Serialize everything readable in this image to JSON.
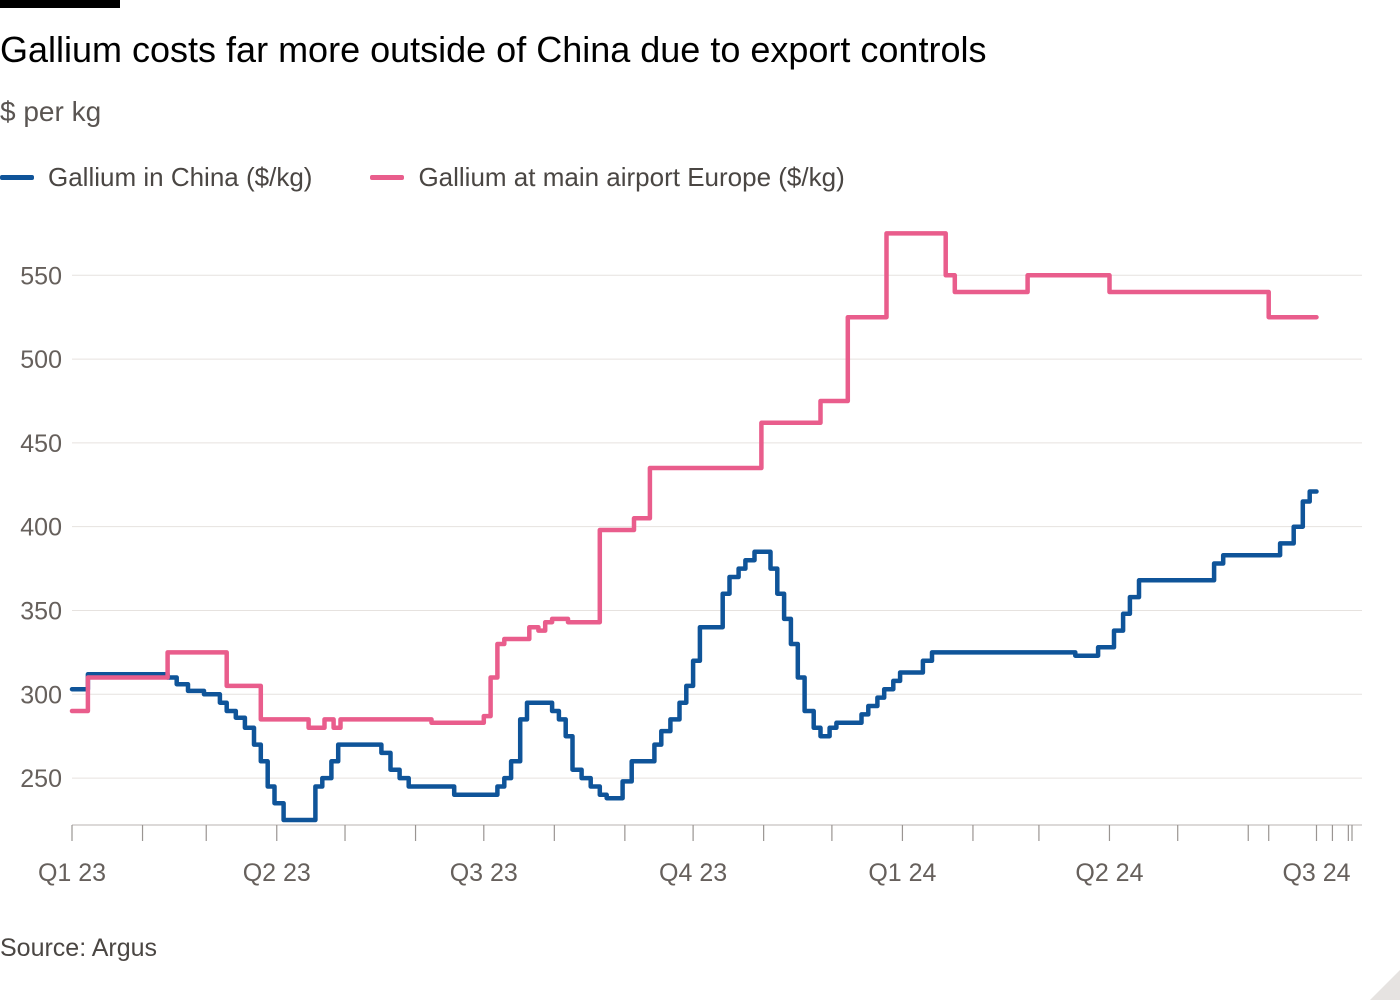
{
  "chart_data": {
    "type": "line",
    "title": "Gallium costs far more outside of China due to export controls",
    "subtitle": "$ per kg",
    "source": "Source: Argus",
    "ylim": [
      222,
      580
    ],
    "xlim": [
      "2023-01-01",
      "2024-07-21"
    ],
    "y_ticks": [
      250,
      300,
      350,
      400,
      450,
      500,
      550
    ],
    "x_tick_labels": [
      {
        "label": "Q1 23",
        "date": "2023-01-01"
      },
      {
        "label": "Q2 23",
        "date": "2023-04-01"
      },
      {
        "label": "Q3 23",
        "date": "2023-07-01"
      },
      {
        "label": "Q4 23",
        "date": "2023-10-01"
      },
      {
        "label": "Q1 24",
        "date": "2024-01-01"
      },
      {
        "label": "Q2 24",
        "date": "2024-04-01"
      },
      {
        "label": "Q3 24",
        "date": "2024-07-01"
      }
    ],
    "month_ticks": [
      "2023-01-01",
      "2023-02-01",
      "2023-03-01",
      "2023-04-01",
      "2023-05-01",
      "2023-06-01",
      "2023-07-01",
      "2023-08-01",
      "2023-09-01",
      "2023-10-01",
      "2023-11-01",
      "2023-12-01",
      "2024-01-01",
      "2024-02-01",
      "2024-03-01",
      "2024-04-01",
      "2024-05-01",
      "2024-06-01",
      "2024-07-01"
    ],
    "week_ticks": [
      "2024-06-10",
      "2024-07-08",
      "2024-07-15"
    ],
    "grid": true,
    "legend_position": "top-left",
    "series": [
      {
        "name": "Gallium in China ($/kg)",
        "color": "#0f5499",
        "points": [
          [
            "2023-01-01",
            303
          ],
          [
            "2023-01-08",
            303
          ],
          [
            "2023-01-08",
            312
          ],
          [
            "2023-02-12",
            312
          ],
          [
            "2023-02-12",
            310
          ],
          [
            "2023-02-16",
            310
          ],
          [
            "2023-02-16",
            306
          ],
          [
            "2023-02-21",
            306
          ],
          [
            "2023-02-21",
            302
          ],
          [
            "2023-02-28",
            302
          ],
          [
            "2023-02-28",
            300
          ],
          [
            "2023-03-07",
            300
          ],
          [
            "2023-03-07",
            295
          ],
          [
            "2023-03-10",
            295
          ],
          [
            "2023-03-10",
            290
          ],
          [
            "2023-03-14",
            290
          ],
          [
            "2023-03-14",
            286
          ],
          [
            "2023-03-18",
            286
          ],
          [
            "2023-03-18",
            280
          ],
          [
            "2023-03-22",
            280
          ],
          [
            "2023-03-22",
            270
          ],
          [
            "2023-03-25",
            270
          ],
          [
            "2023-03-25",
            260
          ],
          [
            "2023-03-28",
            260
          ],
          [
            "2023-03-28",
            245
          ],
          [
            "2023-03-31",
            245
          ],
          [
            "2023-03-31",
            235
          ],
          [
            "2023-04-04",
            235
          ],
          [
            "2023-04-04",
            225
          ],
          [
            "2023-04-18",
            225
          ],
          [
            "2023-04-18",
            245
          ],
          [
            "2023-04-21",
            245
          ],
          [
            "2023-04-21",
            250
          ],
          [
            "2023-04-25",
            250
          ],
          [
            "2023-04-25",
            260
          ],
          [
            "2023-04-28",
            260
          ],
          [
            "2023-04-28",
            270
          ],
          [
            "2023-05-17",
            270
          ],
          [
            "2023-05-17",
            265
          ],
          [
            "2023-05-21",
            265
          ],
          [
            "2023-05-21",
            255
          ],
          [
            "2023-05-25",
            255
          ],
          [
            "2023-05-25",
            250
          ],
          [
            "2023-05-29",
            250
          ],
          [
            "2023-05-29",
            245
          ],
          [
            "2023-06-18",
            245
          ],
          [
            "2023-06-18",
            240
          ],
          [
            "2023-07-07",
            240
          ],
          [
            "2023-07-07",
            245
          ],
          [
            "2023-07-10",
            245
          ],
          [
            "2023-07-10",
            250
          ],
          [
            "2023-07-13",
            250
          ],
          [
            "2023-07-13",
            260
          ],
          [
            "2023-07-17",
            260
          ],
          [
            "2023-07-17",
            285
          ],
          [
            "2023-07-20",
            285
          ],
          [
            "2023-07-20",
            295
          ],
          [
            "2023-07-31",
            295
          ],
          [
            "2023-07-31",
            290
          ],
          [
            "2023-08-03",
            290
          ],
          [
            "2023-08-03",
            285
          ],
          [
            "2023-08-06",
            285
          ],
          [
            "2023-08-06",
            275
          ],
          [
            "2023-08-09",
            275
          ],
          [
            "2023-08-09",
            255
          ],
          [
            "2023-08-13",
            255
          ],
          [
            "2023-08-13",
            250
          ],
          [
            "2023-08-17",
            250
          ],
          [
            "2023-08-17",
            245
          ],
          [
            "2023-08-21",
            245
          ],
          [
            "2023-08-21",
            240
          ],
          [
            "2023-08-24",
            240
          ],
          [
            "2023-08-24",
            238
          ],
          [
            "2023-08-31",
            238
          ],
          [
            "2023-08-31",
            248
          ],
          [
            "2023-09-04",
            248
          ],
          [
            "2023-09-04",
            260
          ],
          [
            "2023-09-14",
            260
          ],
          [
            "2023-09-14",
            270
          ],
          [
            "2023-09-17",
            270
          ],
          [
            "2023-09-17",
            278
          ],
          [
            "2023-09-21",
            278
          ],
          [
            "2023-09-21",
            285
          ],
          [
            "2023-09-25",
            285
          ],
          [
            "2023-09-25",
            295
          ],
          [
            "2023-09-28",
            295
          ],
          [
            "2023-09-28",
            305
          ],
          [
            "2023-10-01",
            305
          ],
          [
            "2023-10-01",
            320
          ],
          [
            "2023-10-04",
            320
          ],
          [
            "2023-10-04",
            340
          ],
          [
            "2023-10-14",
            340
          ],
          [
            "2023-10-14",
            360
          ],
          [
            "2023-10-17",
            360
          ],
          [
            "2023-10-17",
            370
          ],
          [
            "2023-10-21",
            370
          ],
          [
            "2023-10-21",
            375
          ],
          [
            "2023-10-24",
            375
          ],
          [
            "2023-10-24",
            380
          ],
          [
            "2023-10-28",
            380
          ],
          [
            "2023-10-28",
            385
          ],
          [
            "2023-11-04",
            385
          ],
          [
            "2023-11-04",
            375
          ],
          [
            "2023-11-07",
            375
          ],
          [
            "2023-11-07",
            360
          ],
          [
            "2023-11-10",
            360
          ],
          [
            "2023-11-10",
            345
          ],
          [
            "2023-11-13",
            345
          ],
          [
            "2023-11-13",
            330
          ],
          [
            "2023-11-16",
            330
          ],
          [
            "2023-11-16",
            310
          ],
          [
            "2023-11-19",
            310
          ],
          [
            "2023-11-19",
            290
          ],
          [
            "2023-11-23",
            290
          ],
          [
            "2023-11-23",
            280
          ],
          [
            "2023-11-26",
            280
          ],
          [
            "2023-11-26",
            275
          ],
          [
            "2023-11-30",
            275
          ],
          [
            "2023-11-30",
            280
          ],
          [
            "2023-12-03",
            280
          ],
          [
            "2023-12-03",
            283
          ],
          [
            "2023-12-14",
            283
          ],
          [
            "2023-12-14",
            288
          ],
          [
            "2023-12-17",
            288
          ],
          [
            "2023-12-17",
            293
          ],
          [
            "2023-12-21",
            293
          ],
          [
            "2023-12-21",
            298
          ],
          [
            "2023-12-24",
            298
          ],
          [
            "2023-12-24",
            303
          ],
          [
            "2023-12-28",
            303
          ],
          [
            "2023-12-28",
            308
          ],
          [
            "2023-12-31",
            308
          ],
          [
            "2023-12-31",
            313
          ],
          [
            "2024-01-10",
            313
          ],
          [
            "2024-01-10",
            320
          ],
          [
            "2024-01-14",
            320
          ],
          [
            "2024-01-14",
            325
          ],
          [
            "2024-03-17",
            325
          ],
          [
            "2024-03-17",
            323
          ],
          [
            "2024-03-27",
            323
          ],
          [
            "2024-03-27",
            328
          ],
          [
            "2024-04-03",
            328
          ],
          [
            "2024-04-03",
            338
          ],
          [
            "2024-04-07",
            338
          ],
          [
            "2024-04-07",
            348
          ],
          [
            "2024-04-10",
            348
          ],
          [
            "2024-04-10",
            358
          ],
          [
            "2024-04-14",
            358
          ],
          [
            "2024-04-14",
            368
          ],
          [
            "2024-05-17",
            368
          ],
          [
            "2024-05-17",
            378
          ],
          [
            "2024-05-21",
            378
          ],
          [
            "2024-05-21",
            383
          ],
          [
            "2024-06-15",
            383
          ],
          [
            "2024-06-15",
            390
          ],
          [
            "2024-06-21",
            390
          ],
          [
            "2024-06-21",
            400
          ],
          [
            "2024-06-25",
            400
          ],
          [
            "2024-06-25",
            415
          ],
          [
            "2024-06-28",
            415
          ],
          [
            "2024-06-28",
            421
          ],
          [
            "2024-07-01",
            421
          ]
        ]
      },
      {
        "name": "Gallium at main airport Europe ($/kg)",
        "color": "#e95d8c",
        "points": [
          [
            "2023-01-01",
            290
          ],
          [
            "2023-01-08",
            290
          ],
          [
            "2023-01-08",
            310
          ],
          [
            "2023-02-12",
            310
          ],
          [
            "2023-02-12",
            325
          ],
          [
            "2023-03-10",
            325
          ],
          [
            "2023-03-10",
            305
          ],
          [
            "2023-03-25",
            305
          ],
          [
            "2023-03-25",
            285
          ],
          [
            "2023-04-15",
            285
          ],
          [
            "2023-04-15",
            280
          ],
          [
            "2023-04-22",
            280
          ],
          [
            "2023-04-22",
            285
          ],
          [
            "2023-04-26",
            285
          ],
          [
            "2023-04-26",
            280
          ],
          [
            "2023-04-29",
            280
          ],
          [
            "2023-04-29",
            285
          ],
          [
            "2023-06-08",
            285
          ],
          [
            "2023-06-08",
            283
          ],
          [
            "2023-07-01",
            283
          ],
          [
            "2023-07-01",
            287
          ],
          [
            "2023-07-04",
            287
          ],
          [
            "2023-07-04",
            310
          ],
          [
            "2023-07-07",
            310
          ],
          [
            "2023-07-07",
            330
          ],
          [
            "2023-07-10",
            330
          ],
          [
            "2023-07-10",
            333
          ],
          [
            "2023-07-21",
            333
          ],
          [
            "2023-07-21",
            340
          ],
          [
            "2023-07-25",
            340
          ],
          [
            "2023-07-25",
            338
          ],
          [
            "2023-07-28",
            338
          ],
          [
            "2023-07-28",
            343
          ],
          [
            "2023-07-31",
            343
          ],
          [
            "2023-07-31",
            345
          ],
          [
            "2023-08-07",
            345
          ],
          [
            "2023-08-07",
            343
          ],
          [
            "2023-08-21",
            343
          ],
          [
            "2023-08-21",
            398
          ],
          [
            "2023-09-05",
            398
          ],
          [
            "2023-09-05",
            405
          ],
          [
            "2023-09-12",
            405
          ],
          [
            "2023-09-12",
            435
          ],
          [
            "2023-10-31",
            435
          ],
          [
            "2023-10-31",
            462
          ],
          [
            "2023-11-26",
            462
          ],
          [
            "2023-11-26",
            475
          ],
          [
            "2023-12-08",
            475
          ],
          [
            "2023-12-08",
            525
          ],
          [
            "2023-12-25",
            525
          ],
          [
            "2023-12-25",
            575
          ],
          [
            "2024-01-20",
            575
          ],
          [
            "2024-01-20",
            550
          ],
          [
            "2024-01-24",
            550
          ],
          [
            "2024-01-24",
            540
          ],
          [
            "2024-02-25",
            540
          ],
          [
            "2024-02-25",
            550
          ],
          [
            "2024-04-01",
            550
          ],
          [
            "2024-04-01",
            540
          ],
          [
            "2024-06-10",
            540
          ],
          [
            "2024-06-10",
            525
          ],
          [
            "2024-07-01",
            525
          ]
        ]
      }
    ]
  }
}
